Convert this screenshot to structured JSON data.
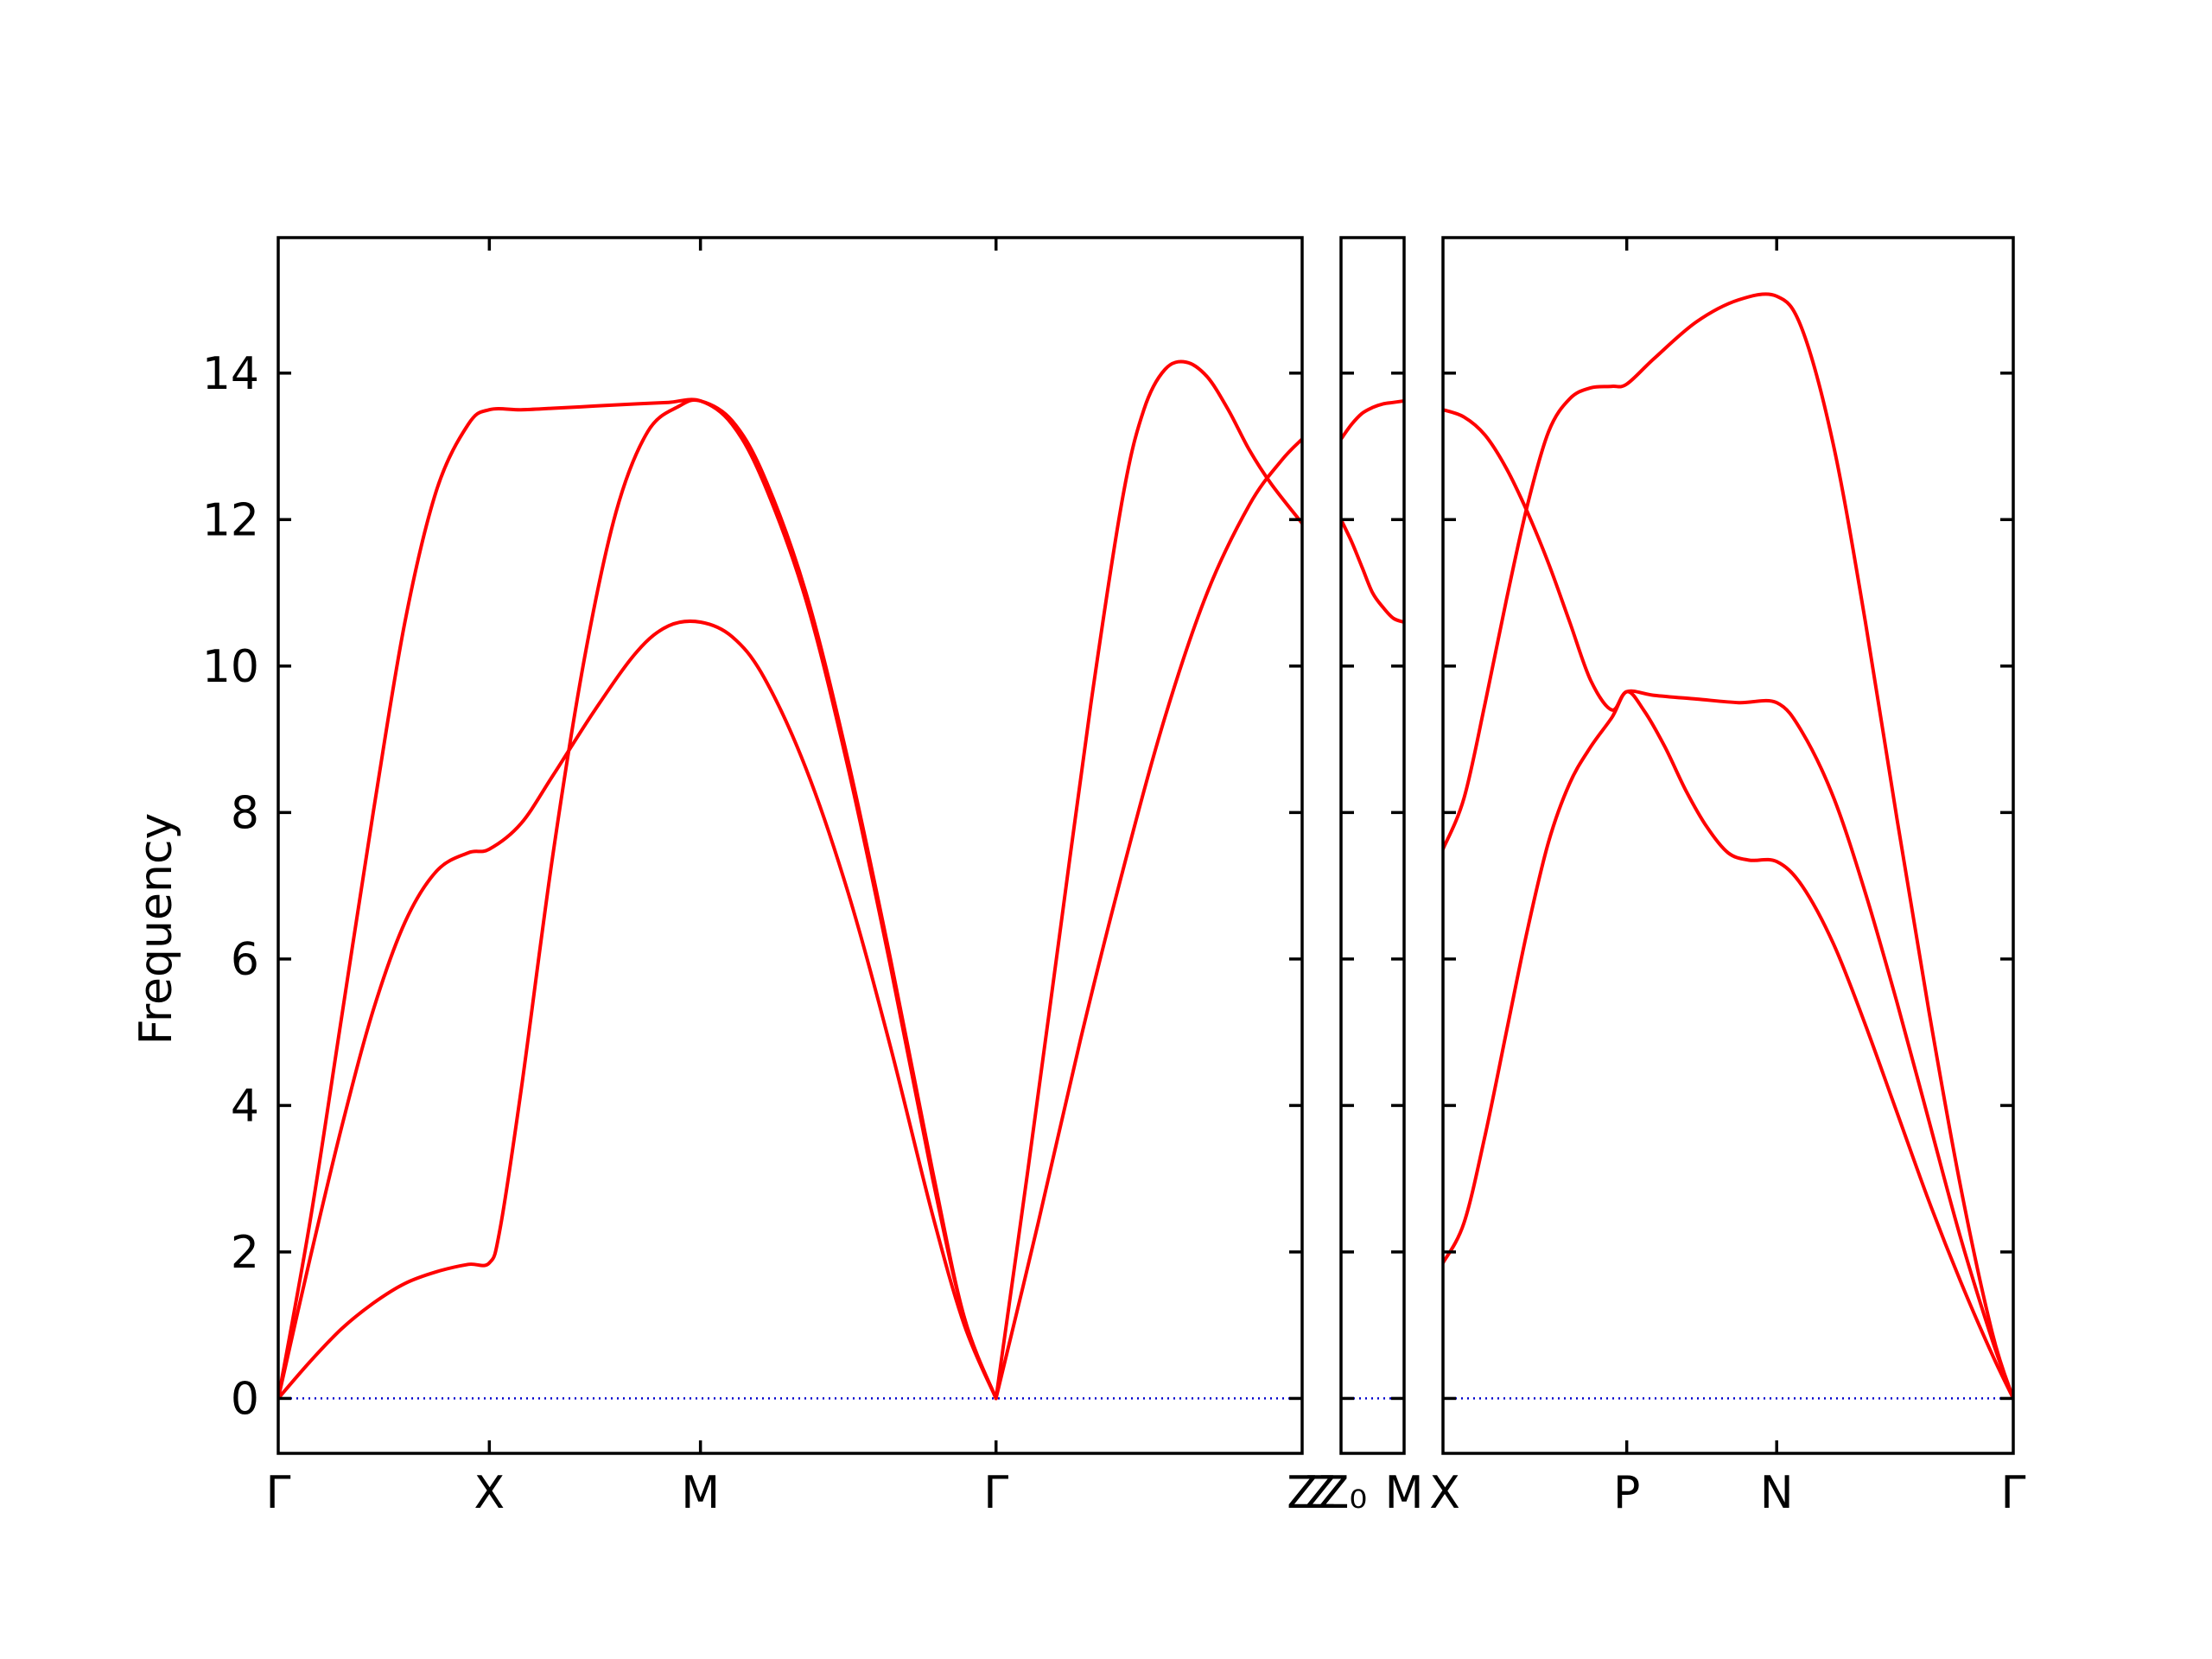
{
  "chart_data": {
    "type": "line",
    "title": "",
    "ylabel": "Frequency",
    "xlabel": "",
    "ylim": [
      -0.75,
      15.85
    ],
    "yticks": [
      0,
      2,
      4,
      6,
      8,
      10,
      12,
      14
    ],
    "grid": false,
    "legend": "none",
    "colors": {
      "band": "#ff0000",
      "zero_line": "#0000cc",
      "axes": "#000000"
    },
    "panels": [
      {
        "name": "panel-1",
        "xlim": [
          0,
          4.85
        ],
        "points": [
          {
            "label": "Γ",
            "x": 0
          },
          {
            "label": "X",
            "x": 1.0
          },
          {
            "label": "M",
            "x": 2.0
          },
          {
            "label": "Γ",
            "x": 3.4
          },
          {
            "label": "Z",
            "x": 4.85
          }
        ],
        "series": [
          {
            "x": [
              0,
              0.15,
              0.3,
              0.45,
              0.6,
              0.75,
              0.9,
              1.0,
              1.15,
              1.3,
              1.5,
              1.7,
              1.85,
              2.0,
              2.15,
              2.3,
              2.5,
              2.7,
              2.9,
              3.1,
              3.25,
              3.4
            ],
            "values": [
              0,
              2.4,
              5.2,
              8.0,
              10.6,
              12.4,
              13.3,
              13.5,
              13.5,
              13.52,
              13.55,
              13.58,
              13.6,
              13.62,
              13.3,
              12.5,
              10.9,
              8.6,
              5.9,
              3.0,
              1.1,
              0
            ]
          },
          {
            "x": [
              0,
              0.15,
              0.3,
              0.45,
              0.6,
              0.75,
              0.9,
              1.0,
              1.15,
              1.3,
              1.5,
              1.7,
              1.85,
              2.0,
              2.15,
              2.3,
              2.5,
              2.7,
              2.9,
              3.1,
              3.25,
              3.4
            ],
            "values": [
              0,
              1.9,
              3.7,
              5.3,
              6.5,
              7.2,
              7.45,
              7.5,
              7.85,
              8.5,
              9.4,
              10.2,
              10.55,
              10.6,
              10.4,
              9.85,
              8.6,
              6.9,
              4.8,
              2.5,
              1.0,
              0
            ]
          },
          {
            "x": [
              0,
              0.15,
              0.3,
              0.45,
              0.6,
              0.75,
              0.9,
              1.0,
              1.05,
              1.15,
              1.3,
              1.45,
              1.6,
              1.75,
              1.9,
              2.0,
              2.15,
              2.3,
              2.5,
              2.7,
              2.9,
              3.1,
              3.25,
              3.4
            ],
            "values": [
              0,
              0.5,
              0.95,
              1.3,
              1.57,
              1.73,
              1.83,
              1.85,
              2.3,
              4.2,
              7.4,
              10.1,
              12.1,
              13.2,
              13.55,
              13.62,
              13.35,
              12.6,
              11.0,
              8.7,
              6.0,
              3.1,
              1.1,
              0
            ]
          },
          {
            "x": [
              3.4,
              3.55,
              3.7,
              3.85,
              4.0,
              4.1,
              4.2,
              4.3,
              4.4,
              4.5,
              4.6,
              4.7,
              4.85
            ],
            "values": [
              0,
              3.1,
              6.3,
              9.5,
              12.3,
              13.5,
              14.05,
              14.15,
              13.95,
              13.5,
              12.95,
              12.5,
              11.95
            ]
          },
          {
            "x": [
              3.4,
              3.6,
              3.8,
              4.0,
              4.2,
              4.4,
              4.6,
              4.75,
              4.85
            ],
            "values": [
              0,
              2.4,
              4.9,
              7.2,
              9.3,
              11.0,
              12.2,
              12.8,
              13.1
            ]
          }
        ]
      },
      {
        "name": "panel-2",
        "xlim": [
          0,
          0.3
        ],
        "points": [
          {
            "label": "Z",
            "x": 0
          },
          {
            "label": "Z₀",
            "x": 0.0
          },
          {
            "label": "M",
            "x": 0.3
          }
        ],
        "series": [
          {
            "x": [
              0,
              0.05,
              0.1,
              0.15,
              0.2,
              0.25,
              0.3
            ],
            "values": [
              13.1,
              13.3,
              13.45,
              13.53,
              13.58,
              13.6,
              13.62
            ]
          },
          {
            "x": [
              0,
              0.05,
              0.1,
              0.15,
              0.2,
              0.25,
              0.3
            ],
            "values": [
              12.0,
              11.7,
              11.35,
              11.0,
              10.8,
              10.65,
              10.6
            ]
          }
        ]
      },
      {
        "name": "panel-3",
        "xlim": [
          0,
          2.7
        ],
        "points": [
          {
            "label": "X",
            "x": 0
          },
          {
            "label": "P",
            "x": 0.87
          },
          {
            "label": "N",
            "x": 1.58
          },
          {
            "label": "Γ",
            "x": 2.7
          }
        ],
        "series": [
          {
            "x": [
              0,
              0.1,
              0.2,
              0.3,
              0.4,
              0.5,
              0.6,
              0.7,
              0.8,
              0.87,
              1.0,
              1.2,
              1.4,
              1.58,
              1.7,
              1.85,
              2.0,
              2.15,
              2.3,
              2.45,
              2.6,
              2.7
            ],
            "values": [
              13.5,
              13.4,
              13.15,
              12.7,
              12.1,
              11.4,
              10.6,
              9.8,
              9.4,
              9.65,
              9.6,
              9.55,
              9.5,
              9.5,
              9.1,
              8.2,
              6.9,
              5.4,
              3.8,
              2.2,
              0.8,
              0
            ]
          },
          {
            "x": [
              0,
              0.1,
              0.2,
              0.3,
              0.4,
              0.5,
              0.6,
              0.7,
              0.8,
              0.87,
              1.0,
              1.2,
              1.4,
              1.58,
              1.7,
              1.85,
              2.0,
              2.15,
              2.3,
              2.45,
              2.6,
              2.7
            ],
            "values": [
              7.5,
              8.2,
              9.5,
              10.9,
              12.2,
              13.2,
              13.65,
              13.8,
              13.82,
              13.85,
              14.2,
              14.7,
              15.0,
              15.05,
              14.6,
              13.0,
              10.6,
              7.9,
              5.3,
              2.9,
              0.9,
              0
            ]
          },
          {
            "x": [
              0,
              0.1,
              0.2,
              0.3,
              0.4,
              0.5,
              0.6,
              0.7,
              0.8,
              0.87,
              0.95,
              1.05,
              1.15,
              1.25,
              1.35,
              1.45,
              1.58,
              1.7,
              1.85,
              2.0,
              2.15,
              2.3,
              2.45,
              2.6,
              2.7
            ],
            "values": [
              1.85,
              2.4,
              3.6,
              5.0,
              6.4,
              7.6,
              8.4,
              8.9,
              9.3,
              9.65,
              9.4,
              8.9,
              8.3,
              7.8,
              7.45,
              7.35,
              7.33,
              7.0,
              6.2,
              5.1,
              3.9,
              2.7,
              1.6,
              0.6,
              0
            ]
          }
        ]
      }
    ]
  }
}
